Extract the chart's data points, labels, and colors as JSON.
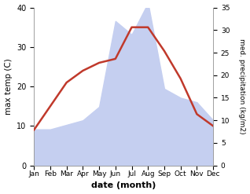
{
  "months": [
    "Jan",
    "Feb",
    "Mar",
    "Apr",
    "May",
    "Jun",
    "Jul",
    "Aug",
    "Sep",
    "Oct",
    "Nov",
    "Dec"
  ],
  "max_temp": [
    9,
    15,
    21,
    24,
    26,
    27,
    35,
    35,
    29,
    22,
    13,
    10
  ],
  "precipitation": [
    8,
    8,
    9,
    10,
    13,
    32,
    29,
    36,
    17,
    15,
    14,
    10
  ],
  "temp_color": "#c0392b",
  "precip_fill_color": "#c5cff0",
  "temp_ylim": [
    0,
    40
  ],
  "precip_ylim": [
    0,
    35
  ],
  "temp_yticks": [
    0,
    10,
    20,
    30,
    40
  ],
  "precip_yticks": [
    0,
    5,
    10,
    15,
    20,
    25,
    30,
    35
  ],
  "xlabel": "date (month)",
  "ylabel_left": "max temp (C)",
  "ylabel_right": "med. precipitation (kg/m2)",
  "background_color": "#ffffff"
}
